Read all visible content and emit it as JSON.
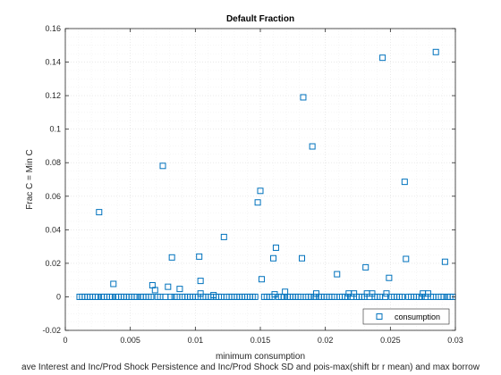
{
  "chart_data": {
    "type": "scatter",
    "title": "Default Fraction",
    "xlabel": "minimum consumption",
    "ylabel": "Frac C = Min C",
    "caption": "ave Interest and Inc/Prod Shock Persistence and Inc/Prod Shock SD and pois-max(shift br r mean) and max borrow",
    "xlim": [
      0,
      0.03
    ],
    "ylim": [
      -0.02,
      0.16
    ],
    "x_ticks": [
      "0",
      "0.005",
      "0.01",
      "0.015",
      "0.02",
      "0.025",
      "0.03"
    ],
    "y_ticks": [
      "-0.02",
      "0",
      "0.02",
      "0.04",
      "0.06",
      "0.08",
      "0.1",
      "0.12",
      "0.14",
      "0.16"
    ],
    "grid": "on (dotted, with minor grid)",
    "legend_position": "bottom-right",
    "colors": {
      "marker": "#0072BD",
      "axis": "#262626",
      "grid": "#dcdcdc"
    },
    "series": [
      {
        "name": "consumption",
        "marker": "open-square",
        "points": [
          [
            0.0026,
            0.0505
          ],
          [
            0.0037,
            0.0077
          ],
          [
            0.0067,
            0.0069
          ],
          [
            0.0069,
            0.004
          ],
          [
            0.0075,
            0.0781
          ],
          [
            0.0079,
            0.006
          ],
          [
            0.0082,
            0.0235
          ],
          [
            0.0088,
            0.0047
          ],
          [
            0.0103,
            0.024
          ],
          [
            0.0104,
            0.0095
          ],
          [
            0.0104,
            0.002
          ],
          [
            0.0114,
            0.001
          ],
          [
            0.0122,
            0.0357
          ],
          [
            0.0148,
            0.0563
          ],
          [
            0.015,
            0.0632
          ],
          [
            0.0151,
            0.0105
          ],
          [
            0.016,
            0.023
          ],
          [
            0.0161,
            0.0015
          ],
          [
            0.0162,
            0.0293
          ],
          [
            0.0169,
            0.003
          ],
          [
            0.0182,
            0.023
          ],
          [
            0.0183,
            0.119
          ],
          [
            0.019,
            0.0897
          ],
          [
            0.0193,
            0.002
          ],
          [
            0.0209,
            0.0135
          ],
          [
            0.0218,
            0.002
          ],
          [
            0.0222,
            0.002
          ],
          [
            0.0231,
            0.0176
          ],
          [
            0.0232,
            0.002
          ],
          [
            0.0236,
            0.002
          ],
          [
            0.0244,
            0.1426
          ],
          [
            0.0247,
            0.002
          ],
          [
            0.0249,
            0.0113
          ],
          [
            0.0261,
            0.0686
          ],
          [
            0.0262,
            0.0226
          ],
          [
            0.0275,
            0.002
          ],
          [
            0.0279,
            0.002
          ],
          [
            0.0285,
            0.146
          ],
          [
            0.0292,
            0.0209
          ]
        ],
        "baseline_y": 0,
        "baseline_x": [
          0.0011,
          0.0013,
          0.0015,
          0.0017,
          0.0019,
          0.0021,
          0.0023,
          0.0025,
          0.0028,
          0.003,
          0.0032,
          0.0034,
          0.0036,
          0.0039,
          0.0041,
          0.0043,
          0.0045,
          0.0047,
          0.0049,
          0.0051,
          0.0053,
          0.0055,
          0.0058,
          0.006,
          0.0062,
          0.0064,
          0.0066,
          0.0071,
          0.0073,
          0.0077,
          0.0081,
          0.0084,
          0.0086,
          0.009,
          0.0092,
          0.0094,
          0.0096,
          0.0098,
          0.01,
          0.0102,
          0.0106,
          0.0108,
          0.011,
          0.0112,
          0.0116,
          0.0118,
          0.012,
          0.0124,
          0.0126,
          0.0128,
          0.013,
          0.0132,
          0.0134,
          0.0136,
          0.0138,
          0.014,
          0.0142,
          0.0144,
          0.0146,
          0.0153,
          0.0155,
          0.0157,
          0.0159,
          0.0164,
          0.0166,
          0.0168,
          0.0171,
          0.0173,
          0.0175,
          0.0177,
          0.0179,
          0.0181,
          0.0185,
          0.0187,
          0.0189,
          0.0192,
          0.0195,
          0.0197,
          0.0199,
          0.0201,
          0.0203,
          0.0205,
          0.0207,
          0.0211,
          0.0213,
          0.0215,
          0.0217,
          0.022,
          0.0224,
          0.0226,
          0.0228,
          0.023,
          0.0234,
          0.0238,
          0.024,
          0.0242,
          0.0246,
          0.0251,
          0.0253,
          0.0255,
          0.0257,
          0.0259,
          0.0264,
          0.0266,
          0.0268,
          0.027,
          0.0272,
          0.0274,
          0.0277,
          0.0281,
          0.0283,
          0.0287,
          0.0289,
          0.0291,
          0.0294,
          0.0296,
          0.0298
        ]
      }
    ]
  }
}
